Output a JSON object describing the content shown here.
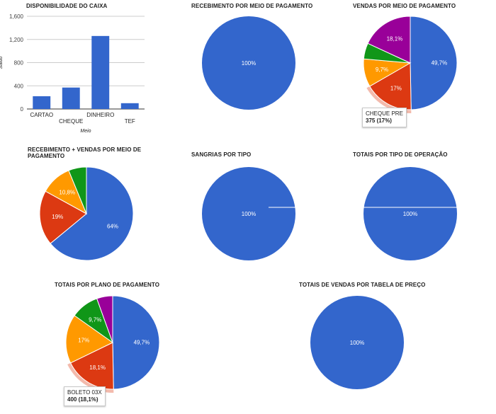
{
  "colors": {
    "blue": "#3366cc",
    "red": "#dc3912",
    "orange": "#ff9900",
    "green": "#109618",
    "purple": "#990099"
  },
  "chart_data": [
    {
      "id": "disponibilidade",
      "type": "bar",
      "title": "DISPONIBILIDADE DO CAIXA",
      "categories": [
        "CARTAO",
        "CHEQUE",
        "DINHEIRO",
        "TEF"
      ],
      "values": [
        220,
        370,
        1260,
        100
      ],
      "xlabel": "Meio",
      "ylabel": "Saldo",
      "ylim": [
        0,
        1600
      ],
      "yticks": [
        0,
        400,
        800,
        1200,
        1600
      ],
      "ytick_labels": [
        "0",
        "400",
        "800",
        "1,200",
        "1,600"
      ]
    },
    {
      "id": "recebimento",
      "type": "pie",
      "title": "RECEBIMENTO POR MEIO DE PAGAMENTO",
      "slices": [
        {
          "value": 100,
          "label": "100%",
          "color": "#3366cc"
        }
      ]
    },
    {
      "id": "vendas",
      "type": "pie",
      "title": "VENDAS POR MEIO DE PAGAMENTO",
      "slices": [
        {
          "value": 49.7,
          "label": "49,7%",
          "color": "#3366cc"
        },
        {
          "value": 17,
          "label": "17%",
          "color": "#dc3912"
        },
        {
          "value": 9.7,
          "label": "9,7%",
          "color": "#ff9900"
        },
        {
          "value": 5.5,
          "label": "",
          "color": "#109618"
        },
        {
          "value": 18.1,
          "label": "18,1%",
          "color": "#990099"
        }
      ],
      "highlight": 1,
      "tooltip": {
        "name": "CHEQUE PRE",
        "value": "375 (17%)"
      }
    },
    {
      "id": "receb_vendas",
      "type": "pie",
      "title": "RECEBIMENTO + VENDAS POR MEIO DE PAGAMENTO",
      "slices": [
        {
          "value": 64,
          "label": "64%",
          "color": "#3366cc"
        },
        {
          "value": 19,
          "label": "19%",
          "color": "#dc3912"
        },
        {
          "value": 10.8,
          "label": "10,8%",
          "color": "#ff9900"
        },
        {
          "value": 6.2,
          "label": "",
          "color": "#109618"
        }
      ]
    },
    {
      "id": "sangrias",
      "type": "pie",
      "title": "SANGRIAS POR TIPO",
      "slices": [
        {
          "value": 100,
          "label": "100%",
          "color": "#3366cc"
        }
      ]
    },
    {
      "id": "totais_operacao",
      "type": "pie",
      "title": "TOTAIS POR TIPO DE OPERAÇÃO",
      "slices": [
        {
          "value": 100,
          "label": "100%",
          "color": "#3366cc"
        }
      ]
    },
    {
      "id": "totais_plano",
      "type": "pie",
      "title": "TOTAIS POR PLANO DE PAGAMENTO",
      "slices": [
        {
          "value": 49.7,
          "label": "49,7%",
          "color": "#3366cc"
        },
        {
          "value": 18.1,
          "label": "18,1%",
          "color": "#dc3912"
        },
        {
          "value": 17,
          "label": "17%",
          "color": "#ff9900"
        },
        {
          "value": 9.7,
          "label": "9,7%",
          "color": "#109618"
        },
        {
          "value": 5.5,
          "label": "",
          "color": "#990099"
        }
      ],
      "highlight": 1,
      "tooltip": {
        "name": "BOLETO 03X",
        "value": "400 (18,1%)"
      }
    },
    {
      "id": "totais_tabela",
      "type": "pie",
      "title": "TOTAIS DE VENDAS POR TABELA DE PREÇO",
      "slices": [
        {
          "value": 100,
          "label": "100%",
          "color": "#3366cc"
        }
      ]
    }
  ]
}
